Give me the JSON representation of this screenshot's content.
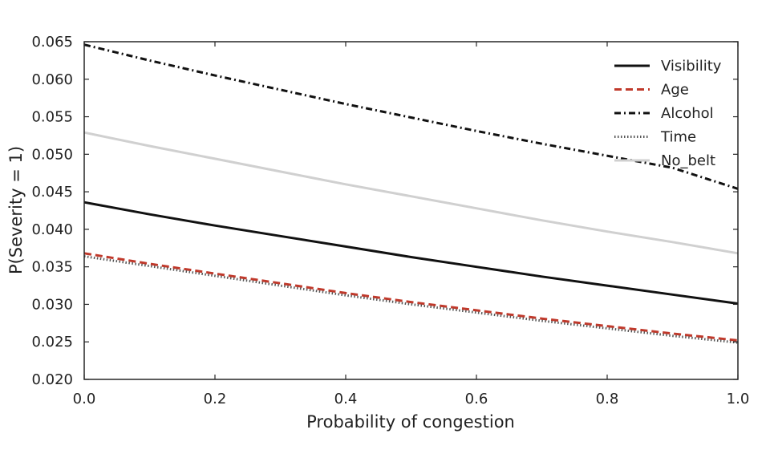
{
  "chart_data": {
    "type": "line",
    "xlabel": "Probability of congestion",
    "ylabel": "P(Severity = 1)",
    "xlim": [
      0.0,
      1.0
    ],
    "ylim": [
      0.02,
      0.065
    ],
    "x_ticks": [
      0.0,
      0.2,
      0.4,
      0.6,
      0.8,
      1.0
    ],
    "y_ticks": [
      0.02,
      0.025,
      0.03,
      0.035,
      0.04,
      0.045,
      0.05,
      0.055,
      0.06,
      0.065
    ],
    "x_tick_labels": [
      "0.0",
      "0.2",
      "0.4",
      "0.6",
      "0.8",
      "1.0"
    ],
    "y_tick_labels": [
      "0.020",
      "0.025",
      "0.030",
      "0.035",
      "0.040",
      "0.045",
      "0.050",
      "0.055",
      "0.060",
      "0.065"
    ],
    "grid": false,
    "legend_position": "top-right",
    "x": [
      0.0,
      0.1,
      0.2,
      0.3,
      0.4,
      0.5,
      0.6,
      0.7,
      0.8,
      0.9,
      1.0
    ],
    "series": [
      {
        "name": "Visibility",
        "color": "#111111",
        "style": "solid",
        "values": [
          0.0436,
          0.042,
          0.0405,
          0.0391,
          0.0377,
          0.0363,
          0.035,
          0.0337,
          0.0325,
          0.0313,
          0.0301
        ]
      },
      {
        "name": "Age",
        "color": "#c0392b",
        "style": "dashed",
        "values": [
          0.0368,
          0.0354,
          0.0341,
          0.0328,
          0.0315,
          0.0303,
          0.0292,
          0.0281,
          0.0271,
          0.0261,
          0.0252
        ]
      },
      {
        "name": "Alcohol",
        "color": "#111111",
        "style": "dashdot",
        "values": [
          0.0646,
          0.0625,
          0.0605,
          0.0586,
          0.0567,
          0.0549,
          0.0531,
          0.0514,
          0.0498,
          0.0482,
          0.0454
        ]
      },
      {
        "name": "Time",
        "color": "#555555",
        "style": "dotted",
        "values": [
          0.0364,
          0.0351,
          0.0338,
          0.0325,
          0.0312,
          0.03,
          0.0289,
          0.0278,
          0.0268,
          0.0258,
          0.0249
        ]
      },
      {
        "name": "No_belt",
        "color": "#d0d0d0",
        "style": "solid",
        "values": [
          0.0529,
          0.0511,
          0.0494,
          0.0477,
          0.046,
          0.0444,
          0.0428,
          0.0412,
          0.0397,
          0.0383,
          0.0368
        ]
      }
    ]
  }
}
